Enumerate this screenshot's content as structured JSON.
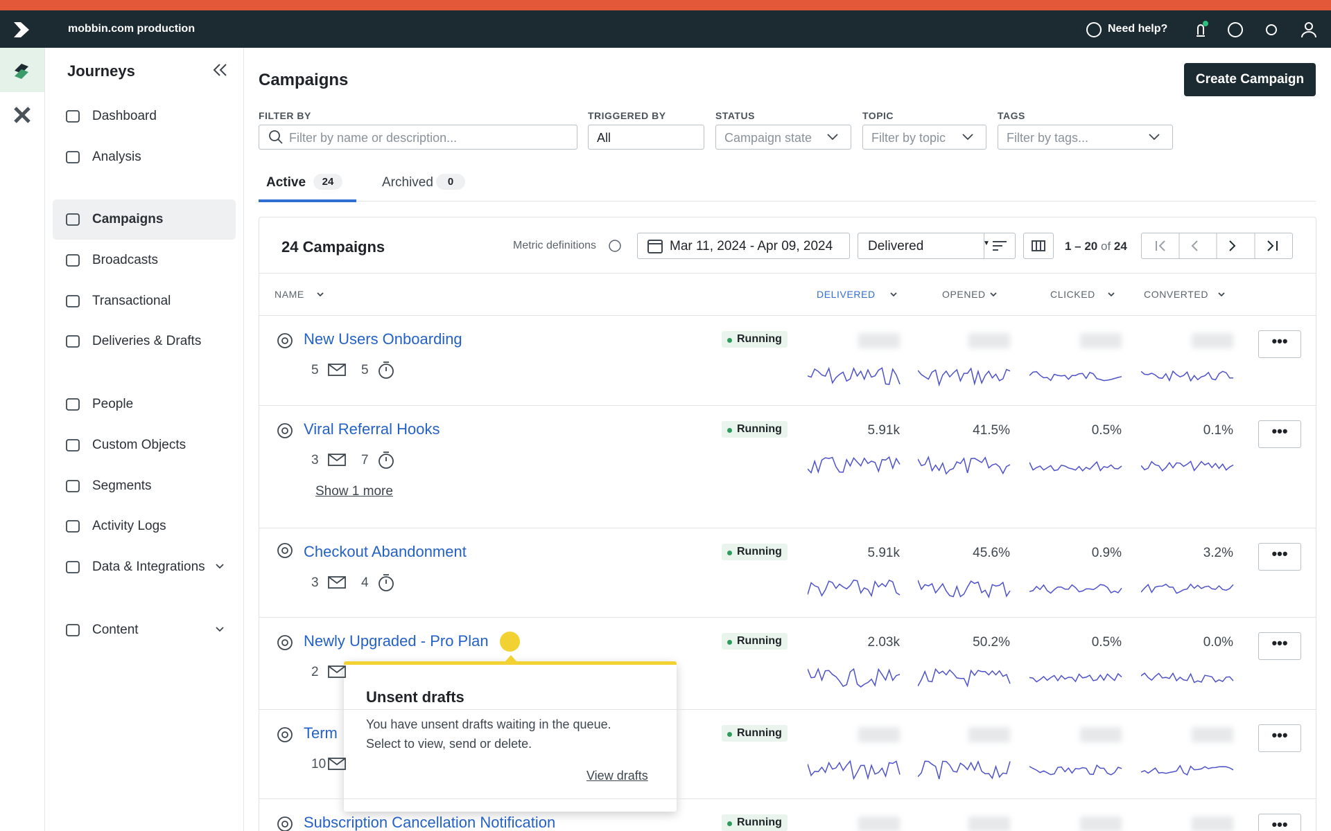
{
  "topbar": {
    "workspace": "mobbin.com production",
    "help": "Need help?"
  },
  "sidebar": {
    "title": "Journeys",
    "items": [
      "Dashboard",
      "Analysis",
      "Campaigns",
      "Broadcasts",
      "Transactional",
      "Deliveries & Drafts",
      "People",
      "Custom Objects",
      "Segments",
      "Activity Logs",
      "Data & Integrations",
      "Content"
    ]
  },
  "page": {
    "title": "Campaigns",
    "create_button": "Create Campaign"
  },
  "filters": [
    {
      "label": "FILTER BY",
      "placeholder": "Filter by name or description..."
    },
    {
      "label": "TRIGGERED BY",
      "value": "All"
    },
    {
      "label": "STATUS",
      "placeholder": "Campaign state"
    },
    {
      "label": "TOPIC",
      "placeholder": "Filter by topic"
    },
    {
      "label": "TAGS",
      "placeholder": "Filter by tags..."
    }
  ],
  "tabs": [
    {
      "label": "Active",
      "count": 24
    },
    {
      "label": "Archived",
      "count": 0
    }
  ],
  "table": {
    "heading": "24 Campaigns",
    "metric_definitions": "Metric definitions",
    "date_range": "Mar 11, 2024 - Apr 09, 2024",
    "metric": "Delivered",
    "pagination": {
      "range": "1 – 20",
      "of": "of",
      "total": "24"
    },
    "columns": [
      "NAME",
      "DELIVERED",
      "OPENED",
      "CLICKED",
      "CONVERTED"
    ],
    "rows": [
      {
        "name": "New Users Onboarding",
        "status": "Running",
        "emails": 5,
        "delays": 5
      },
      {
        "name": "Viral Referral Hooks",
        "status": "Running",
        "emails": 3,
        "delays": 7,
        "more": "Show 1 more",
        "metrics": [
          "5.91k",
          "41.5%",
          "0.5%",
          "0.1%"
        ]
      },
      {
        "name": "Checkout Abandonment",
        "status": "Running",
        "emails": 3,
        "delays": 4,
        "metrics": [
          "5.91k",
          "45.6%",
          "0.9%",
          "3.2%"
        ]
      },
      {
        "name": "Newly Upgraded - Pro Plan",
        "status": "Running",
        "emails": 2,
        "metrics": [
          "2.03k",
          "50.2%",
          "0.5%",
          "0.0%"
        ]
      },
      {
        "name": "Term",
        "status": "Running",
        "emails": 10
      },
      {
        "name": "Subscription Cancellation Notification",
        "status": "Running"
      }
    ]
  },
  "tooltip": {
    "title": "Unsent drafts",
    "text": "You have unsent drafts waiting in the queue. Select to view, send or delete.",
    "link": "View drafts"
  }
}
